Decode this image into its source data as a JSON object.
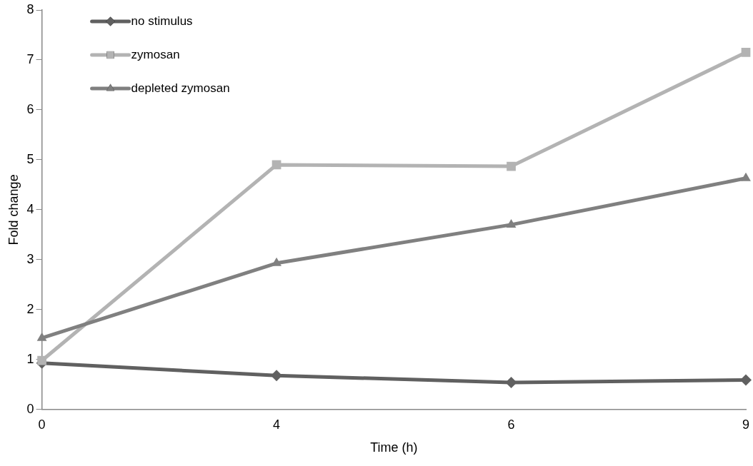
{
  "chart_data": {
    "type": "line",
    "xlabel": "Time (h)",
    "ylabel": "Fold change",
    "categories": [
      "0",
      "4",
      "6",
      "9"
    ],
    "series": [
      {
        "name": "no stimulus",
        "color": "#606060",
        "marker": "diamond",
        "values": [
          0.93,
          0.68,
          0.54,
          0.59
        ]
      },
      {
        "name": "zymosan",
        "color": "#b3b3b3",
        "marker": "square",
        "values": [
          0.98,
          4.9,
          4.87,
          7.15
        ]
      },
      {
        "name": "depleted zymosan",
        "color": "#808080",
        "marker": "triangle",
        "values": [
          1.43,
          2.93,
          3.7,
          4.63
        ]
      }
    ],
    "ylim": [
      0,
      8
    ],
    "yticks": [
      0,
      1,
      2,
      3,
      4,
      5,
      6,
      7,
      8
    ],
    "grid": false,
    "legend": "top left",
    "line_style": "solid"
  }
}
